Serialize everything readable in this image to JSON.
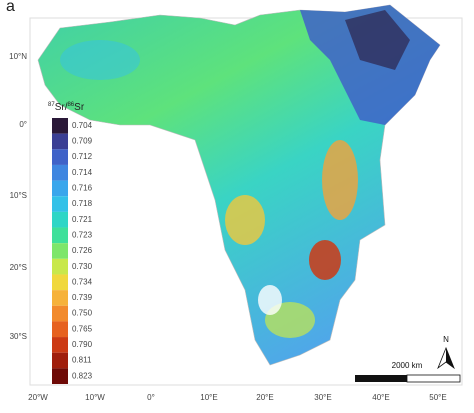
{
  "panel_label": "a",
  "legend": {
    "title": {
      "sup1": "87",
      "text1": "Sr/",
      "sup2": "86",
      "text2": "Sr"
    },
    "entries": [
      {
        "label": "0.704",
        "color": "#2a1838"
      },
      {
        "label": "0.709",
        "color": "#3b3f94"
      },
      {
        "label": "0.712",
        "color": "#3f62c8"
      },
      {
        "label": "0.714",
        "color": "#3f86e0"
      },
      {
        "label": "0.716",
        "color": "#3aa6ec"
      },
      {
        "label": "0.718",
        "color": "#33c1e8"
      },
      {
        "label": "0.721",
        "color": "#2fd6c6"
      },
      {
        "label": "0.723",
        "color": "#3fe09a"
      },
      {
        "label": "0.726",
        "color": "#7ee66a"
      },
      {
        "label": "0.730",
        "color": "#c8e84a"
      },
      {
        "label": "0.734",
        "color": "#f0d83c"
      },
      {
        "label": "0.739",
        "color": "#f6b23a"
      },
      {
        "label": "0.750",
        "color": "#f28a2c"
      },
      {
        "label": "0.765",
        "color": "#e66220"
      },
      {
        "label": "0.790",
        "color": "#cc3a14"
      },
      {
        "label": "0.811",
        "color": "#a01e0c"
      },
      {
        "label": "0.823",
        "color": "#6e0a06"
      }
    ]
  },
  "y_axis_labels": [
    "10°N",
    "0°",
    "10°S",
    "20°S",
    "30°S"
  ],
  "x_axis_labels": [
    "20°W",
    "10°W",
    "0°",
    "10°E",
    "20°E",
    "30°E",
    "40°E",
    "50°E"
  ],
  "scale_bar": "2000 km",
  "north": "N"
}
